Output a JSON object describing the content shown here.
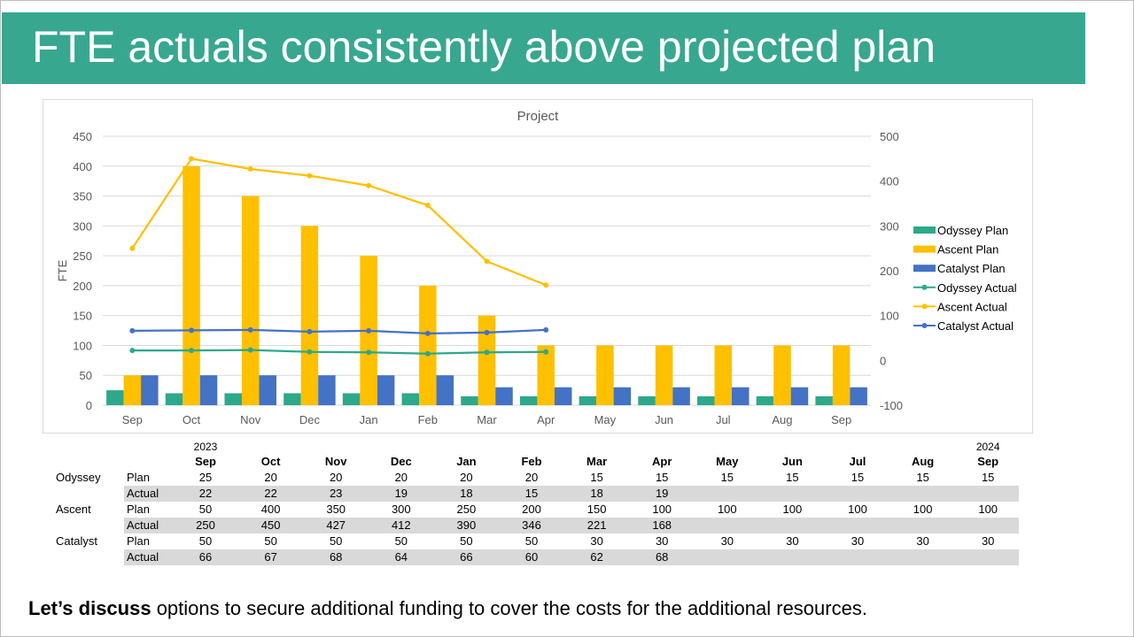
{
  "slide": {
    "title": "FTE actuals consistently above projected plan",
    "footer_bold": "Let’s discuss",
    "footer_rest": " options to secure additional funding to cover the costs for the additional resources."
  },
  "colors": {
    "title_bar": "#38a78f",
    "odyssey": "#2ea88a",
    "ascent": "#ffc000",
    "catalyst": "#4472c4"
  },
  "chart_data": {
    "type": "bar",
    "title": "Project",
    "ylabel": "FTE",
    "xlabel": "",
    "categories": [
      "Sep",
      "Oct",
      "Nov",
      "Dec",
      "Jan",
      "Feb",
      "Mar",
      "Apr",
      "May",
      "Jun",
      "Jul",
      "Aug",
      "Sep"
    ],
    "ylim": [
      0,
      450
    ],
    "yticks": [
      0,
      50,
      100,
      150,
      200,
      250,
      300,
      350,
      400,
      450
    ],
    "y2lim": [
      -100,
      500
    ],
    "y2ticks": [
      -100,
      0,
      100,
      200,
      300,
      400,
      500
    ],
    "legend_position": "right",
    "bar_series": [
      {
        "name": "Odyssey Plan",
        "color": "#2ea88a",
        "values": [
          25,
          20,
          20,
          20,
          20,
          20,
          15,
          15,
          15,
          15,
          15,
          15,
          15
        ]
      },
      {
        "name": "Ascent Plan",
        "color": "#ffc000",
        "values": [
          50,
          400,
          350,
          300,
          250,
          200,
          150,
          100,
          100,
          100,
          100,
          100,
          100
        ]
      },
      {
        "name": "Catalyst Plan",
        "color": "#4472c4",
        "values": [
          50,
          50,
          50,
          50,
          50,
          50,
          30,
          30,
          30,
          30,
          30,
          30,
          30
        ]
      }
    ],
    "line_series": [
      {
        "name": "Odyssey Actual",
        "color": "#2ea88a",
        "axis": "secondary",
        "values": [
          22,
          22,
          23,
          19,
          18,
          15,
          18,
          19
        ]
      },
      {
        "name": "Ascent Actual",
        "color": "#ffc000",
        "axis": "secondary",
        "values": [
          250,
          450,
          427,
          412,
          390,
          346,
          221,
          168
        ]
      },
      {
        "name": "Catalyst Actual",
        "color": "#4472c4",
        "axis": "secondary",
        "values": [
          66,
          67,
          68,
          64,
          66,
          60,
          62,
          68
        ]
      }
    ]
  },
  "table": {
    "year_start": "2023",
    "year_end": "2024",
    "months": [
      "Sep",
      "Oct",
      "Nov",
      "Dec",
      "Jan",
      "Feb",
      "Mar",
      "Apr",
      "May",
      "Jun",
      "Jul",
      "Aug",
      "Sep"
    ],
    "rows": [
      {
        "project": "Odyssey",
        "type": "Plan",
        "values": [
          "25",
          "20",
          "20",
          "20",
          "20",
          "20",
          "15",
          "15",
          "15",
          "15",
          "15",
          "15",
          "15"
        ]
      },
      {
        "project": "",
        "type": "Actual",
        "values": [
          "22",
          "22",
          "23",
          "19",
          "18",
          "15",
          "18",
          "19"
        ]
      },
      {
        "project": "Ascent",
        "type": "Plan",
        "values": [
          "50",
          "400",
          "350",
          "300",
          "250",
          "200",
          "150",
          "100",
          "100",
          "100",
          "100",
          "100",
          "100"
        ]
      },
      {
        "project": "",
        "type": "Actual",
        "values": [
          "250",
          "450",
          "427",
          "412",
          "390",
          "346",
          "221",
          "168"
        ]
      },
      {
        "project": "Catalyst",
        "type": "Plan",
        "values": [
          "50",
          "50",
          "50",
          "50",
          "50",
          "50",
          "30",
          "30",
          "30",
          "30",
          "30",
          "30",
          "30"
        ]
      },
      {
        "project": "",
        "type": "Actual",
        "values": [
          "66",
          "67",
          "68",
          "64",
          "66",
          "60",
          "62",
          "68"
        ]
      }
    ]
  }
}
